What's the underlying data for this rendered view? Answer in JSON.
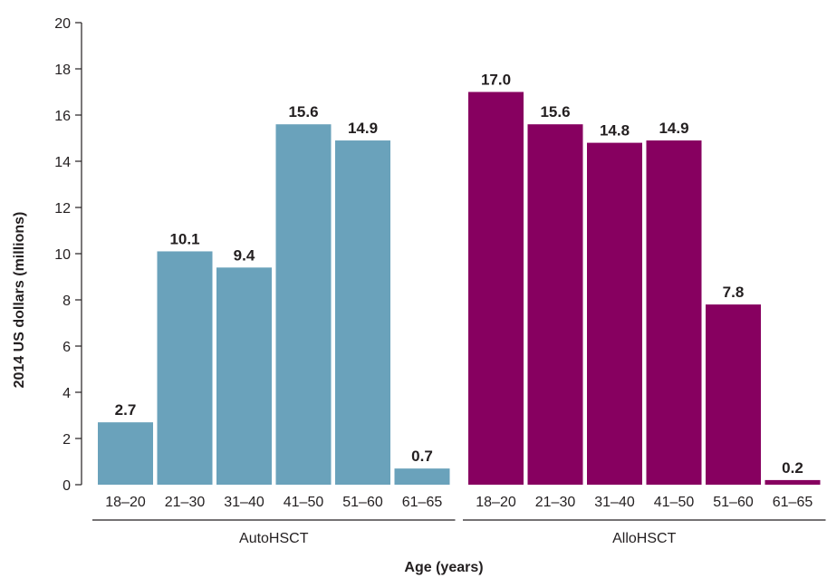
{
  "chart_data": {
    "type": "bar",
    "xlabel": "Age (years)",
    "ylabel": "2014 US dollars (millions)",
    "ylim": [
      0,
      20
    ],
    "yticks": [
      0,
      2,
      4,
      6,
      8,
      10,
      12,
      14,
      16,
      18,
      20
    ],
    "grid": false,
    "groups": [
      {
        "name": "AutoHSCT",
        "color": "#6aa2bb",
        "categories": [
          "18–20",
          "21–30",
          "31–40",
          "41–50",
          "51–60",
          "61–65"
        ],
        "values": [
          2.7,
          10.1,
          9.4,
          15.6,
          14.9,
          0.7
        ],
        "labels": [
          "2.7",
          "10.1",
          "9.4",
          "15.6",
          "14.9",
          "0.7"
        ]
      },
      {
        "name": "AlloHSCT",
        "color": "#870060",
        "categories": [
          "18–20",
          "21–30",
          "31–40",
          "41–50",
          "51–60",
          "61–65"
        ],
        "values": [
          17.0,
          15.6,
          14.8,
          14.9,
          7.8,
          0.2
        ],
        "labels": [
          "17.0",
          "15.6",
          "14.8",
          "14.9",
          "7.8",
          "0.2"
        ]
      }
    ]
  }
}
